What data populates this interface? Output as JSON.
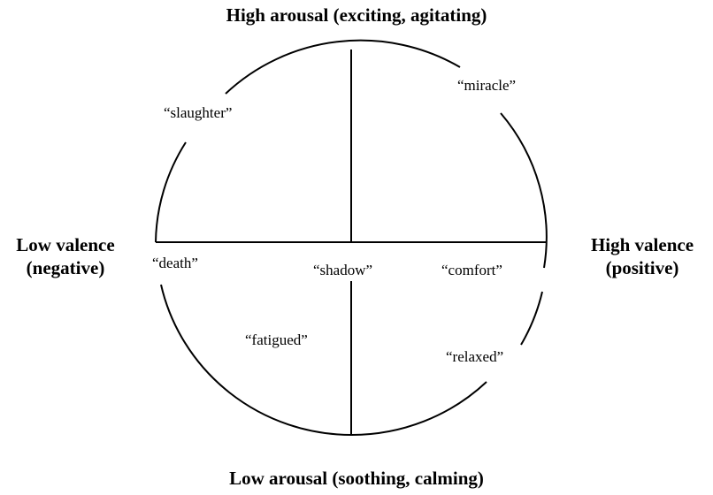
{
  "axes": {
    "top": "High arousal (exciting, agitating)",
    "bottom": "Low arousal (soothing, calming)",
    "left": [
      "Low valence",
      "(negative)"
    ],
    "right": [
      "High valence",
      "(positive)"
    ]
  },
  "words": [
    {
      "text": "“slaughter”"
    },
    {
      "text": "“miracle”"
    },
    {
      "text": "“death”"
    },
    {
      "text": "“shadow”"
    },
    {
      "text": "“comfort”"
    },
    {
      "text": "“fatigued”"
    },
    {
      "text": "“relaxed”"
    }
  ]
}
